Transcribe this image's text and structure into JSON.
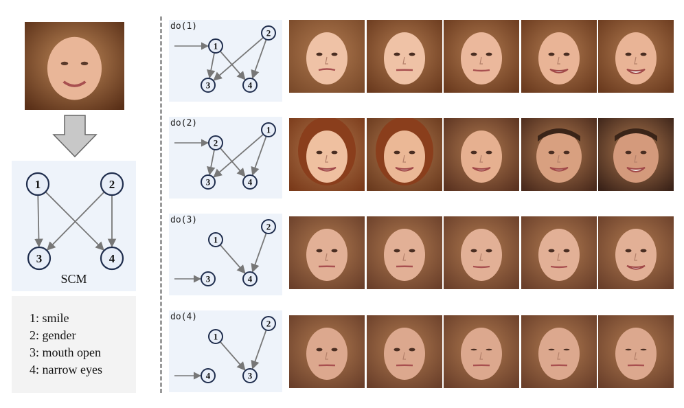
{
  "scm": {
    "caption": "SCM",
    "nodes": [
      {
        "id": "1",
        "label": "1"
      },
      {
        "id": "2",
        "label": "2"
      },
      {
        "id": "3",
        "label": "3"
      },
      {
        "id": "4",
        "label": "4"
      }
    ],
    "edges": [
      [
        "1",
        "3"
      ],
      [
        "1",
        "4"
      ],
      [
        "2",
        "3"
      ],
      [
        "2",
        "4"
      ]
    ]
  },
  "legend": [
    {
      "text": "1: smile"
    },
    {
      "text": "2: gender"
    },
    {
      "text": "3: mouth open"
    },
    {
      "text": "4: narrow eyes"
    }
  ],
  "interventions": [
    {
      "label": "do(1)",
      "target": "1",
      "nodes": {
        "top_left": "1",
        "top_right": "2",
        "bottom_left": "3",
        "bottom_right": "4"
      }
    },
    {
      "label": "do(2)",
      "target": "2",
      "nodes": {
        "top_left": "2",
        "top_right": "1",
        "bottom_left": "3",
        "bottom_right": "4"
      }
    },
    {
      "label": "do(3)",
      "target": "3",
      "nodes": {
        "top_left": "1",
        "top_right": "2",
        "bottom_left": "3",
        "bottom_right": "4"
      }
    },
    {
      "label": "do(4)",
      "target": "4",
      "nodes": {
        "top_left": "1",
        "top_right": "2",
        "bottom_left": "4",
        "bottom_right": "3"
      }
    }
  ],
  "colors": {
    "panel_bg": "#eef3fa",
    "legend_bg": "#f3f3f3",
    "node_stroke": "#1f2d4d",
    "node_fill": "#e8eef8",
    "edge": "#777777",
    "arrow_block": "#c8c8c8"
  }
}
